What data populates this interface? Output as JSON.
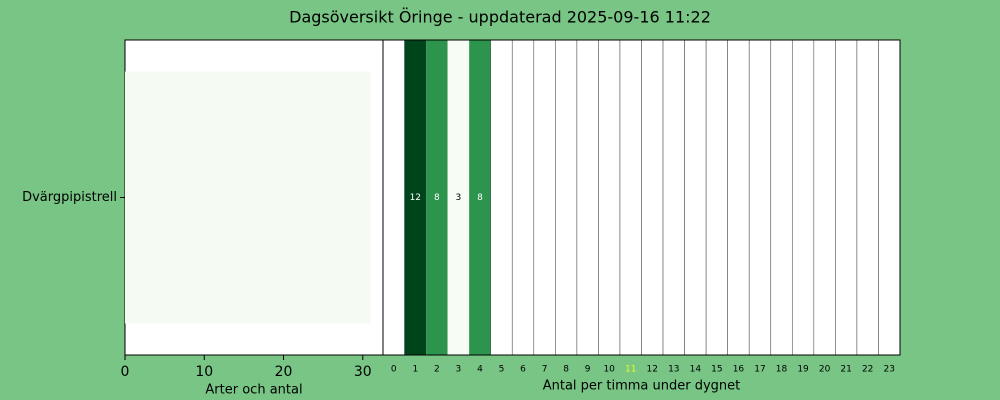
{
  "title": "Dagsöversikt Öringe - uppdaterad 2025-09-16 11:22",
  "chart_data": [
    {
      "type": "hbar",
      "categories": [
        "Dvärgpipistrell"
      ],
      "values": [
        31
      ],
      "color": "#f5fbf3",
      "xlim": [
        0,
        32.55
      ],
      "xticks": [
        0,
        10,
        20,
        30
      ],
      "xlabel": "Arter och antal"
    },
    {
      "type": "heatmap",
      "categories": [
        "0",
        "1",
        "2",
        "3",
        "4",
        "5",
        "6",
        "7",
        "8",
        "9",
        "10",
        "11",
        "12",
        "13",
        "14",
        "15",
        "16",
        "17",
        "18",
        "19",
        "20",
        "21",
        "22",
        "23"
      ],
      "values": [
        null,
        12,
        8,
        3,
        8,
        null,
        null,
        null,
        null,
        null,
        null,
        null,
        null,
        null,
        null,
        null,
        null,
        null,
        null,
        null,
        null,
        null,
        null,
        null
      ],
      "colors": [
        null,
        "#00441b",
        "#2c944c",
        "#f7fcf5",
        "#2c944c",
        null,
        null,
        null,
        null,
        null,
        null,
        null,
        null,
        null,
        null,
        null,
        null,
        null,
        null,
        null,
        null,
        null,
        null,
        null
      ],
      "highlight_index": 11,
      "highlight_color": "#e6ff1a",
      "xlabel": "Antal per timma under dygnet"
    }
  ]
}
